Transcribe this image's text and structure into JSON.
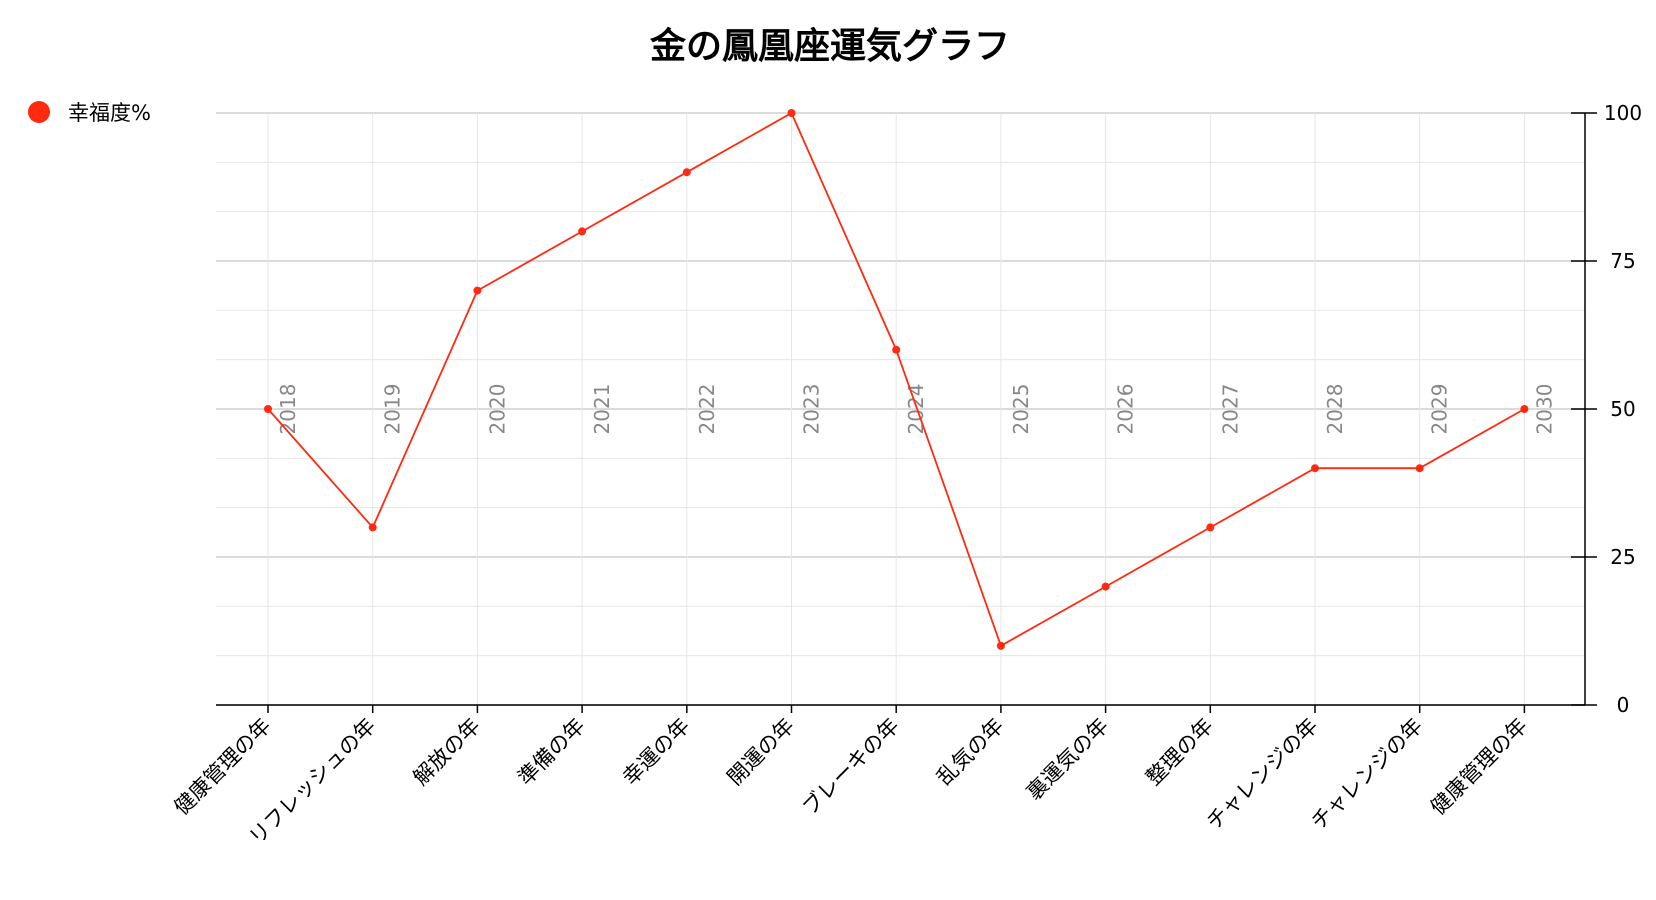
{
  "chart_data": {
    "type": "line",
    "title": "金の鳳凰座運気グラフ",
    "categories": [
      "健康管理の年",
      "リフレッシュの年",
      "解放の年",
      "準備の年",
      "幸運の年",
      "開運の年",
      "ブレーキの年",
      "乱気の年",
      "裏運気の年",
      "整理の年",
      "チャレンジの年",
      "チャレンジの年",
      "健康管理の年"
    ],
    "years": [
      "2018",
      "2019",
      "2020",
      "2021",
      "2022",
      "2023",
      "2024",
      "2025",
      "2026",
      "2027",
      "2028",
      "2029",
      "2030"
    ],
    "series": [
      {
        "name": "幸福度%",
        "color": "#ff2a0f",
        "values": [
          50,
          30,
          70,
          80,
          90,
          100,
          60,
          10,
          20,
          30,
          40,
          40,
          50
        ]
      }
    ],
    "y_axis": {
      "position": "right",
      "ticks": [
        "0",
        "25",
        "50",
        "75",
        "100"
      ],
      "ylim": [
        0,
        100
      ]
    },
    "grid": true,
    "legend": "top-left"
  }
}
